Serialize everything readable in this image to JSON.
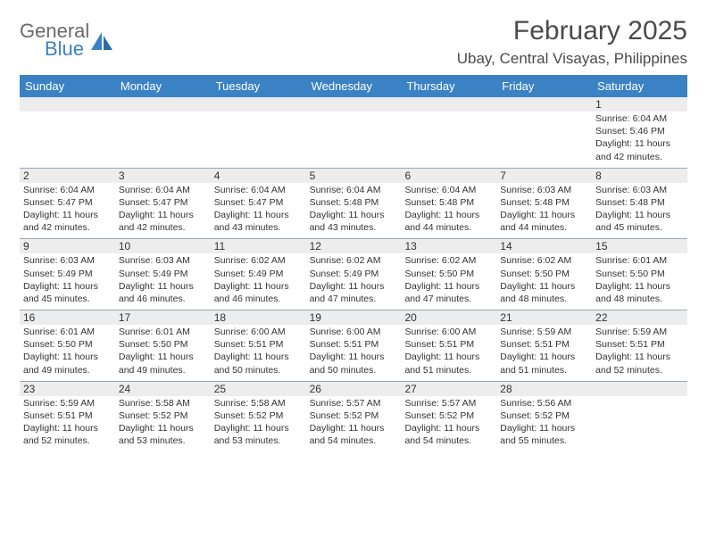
{
  "logo": {
    "text_top": "General",
    "text_bottom": "Blue",
    "top_color": "#6a6a6a",
    "bottom_color": "#3b82c4"
  },
  "title": "February 2025",
  "location": "Ubay, Central Visayas, Philippines",
  "header_bg": "#3b82c4",
  "header_text_color": "#ffffff",
  "stripe_bg": "#ededed",
  "divider_color": "#9aa7b5",
  "weekdays": [
    "Sunday",
    "Monday",
    "Tuesday",
    "Wednesday",
    "Thursday",
    "Friday",
    "Saturday"
  ],
  "weeks": [
    [
      {
        "n": "",
        "sr": "",
        "ss": "",
        "dl": ""
      },
      {
        "n": "",
        "sr": "",
        "ss": "",
        "dl": ""
      },
      {
        "n": "",
        "sr": "",
        "ss": "",
        "dl": ""
      },
      {
        "n": "",
        "sr": "",
        "ss": "",
        "dl": ""
      },
      {
        "n": "",
        "sr": "",
        "ss": "",
        "dl": ""
      },
      {
        "n": "",
        "sr": "",
        "ss": "",
        "dl": ""
      },
      {
        "n": "1",
        "sr": "Sunrise: 6:04 AM",
        "ss": "Sunset: 5:46 PM",
        "dl": "Daylight: 11 hours and 42 minutes."
      }
    ],
    [
      {
        "n": "2",
        "sr": "Sunrise: 6:04 AM",
        "ss": "Sunset: 5:47 PM",
        "dl": "Daylight: 11 hours and 42 minutes."
      },
      {
        "n": "3",
        "sr": "Sunrise: 6:04 AM",
        "ss": "Sunset: 5:47 PM",
        "dl": "Daylight: 11 hours and 42 minutes."
      },
      {
        "n": "4",
        "sr": "Sunrise: 6:04 AM",
        "ss": "Sunset: 5:47 PM",
        "dl": "Daylight: 11 hours and 43 minutes."
      },
      {
        "n": "5",
        "sr": "Sunrise: 6:04 AM",
        "ss": "Sunset: 5:48 PM",
        "dl": "Daylight: 11 hours and 43 minutes."
      },
      {
        "n": "6",
        "sr": "Sunrise: 6:04 AM",
        "ss": "Sunset: 5:48 PM",
        "dl": "Daylight: 11 hours and 44 minutes."
      },
      {
        "n": "7",
        "sr": "Sunrise: 6:03 AM",
        "ss": "Sunset: 5:48 PM",
        "dl": "Daylight: 11 hours and 44 minutes."
      },
      {
        "n": "8",
        "sr": "Sunrise: 6:03 AM",
        "ss": "Sunset: 5:48 PM",
        "dl": "Daylight: 11 hours and 45 minutes."
      }
    ],
    [
      {
        "n": "9",
        "sr": "Sunrise: 6:03 AM",
        "ss": "Sunset: 5:49 PM",
        "dl": "Daylight: 11 hours and 45 minutes."
      },
      {
        "n": "10",
        "sr": "Sunrise: 6:03 AM",
        "ss": "Sunset: 5:49 PM",
        "dl": "Daylight: 11 hours and 46 minutes."
      },
      {
        "n": "11",
        "sr": "Sunrise: 6:02 AM",
        "ss": "Sunset: 5:49 PM",
        "dl": "Daylight: 11 hours and 46 minutes."
      },
      {
        "n": "12",
        "sr": "Sunrise: 6:02 AM",
        "ss": "Sunset: 5:49 PM",
        "dl": "Daylight: 11 hours and 47 minutes."
      },
      {
        "n": "13",
        "sr": "Sunrise: 6:02 AM",
        "ss": "Sunset: 5:50 PM",
        "dl": "Daylight: 11 hours and 47 minutes."
      },
      {
        "n": "14",
        "sr": "Sunrise: 6:02 AM",
        "ss": "Sunset: 5:50 PM",
        "dl": "Daylight: 11 hours and 48 minutes."
      },
      {
        "n": "15",
        "sr": "Sunrise: 6:01 AM",
        "ss": "Sunset: 5:50 PM",
        "dl": "Daylight: 11 hours and 48 minutes."
      }
    ],
    [
      {
        "n": "16",
        "sr": "Sunrise: 6:01 AM",
        "ss": "Sunset: 5:50 PM",
        "dl": "Daylight: 11 hours and 49 minutes."
      },
      {
        "n": "17",
        "sr": "Sunrise: 6:01 AM",
        "ss": "Sunset: 5:50 PM",
        "dl": "Daylight: 11 hours and 49 minutes."
      },
      {
        "n": "18",
        "sr": "Sunrise: 6:00 AM",
        "ss": "Sunset: 5:51 PM",
        "dl": "Daylight: 11 hours and 50 minutes."
      },
      {
        "n": "19",
        "sr": "Sunrise: 6:00 AM",
        "ss": "Sunset: 5:51 PM",
        "dl": "Daylight: 11 hours and 50 minutes."
      },
      {
        "n": "20",
        "sr": "Sunrise: 6:00 AM",
        "ss": "Sunset: 5:51 PM",
        "dl": "Daylight: 11 hours and 51 minutes."
      },
      {
        "n": "21",
        "sr": "Sunrise: 5:59 AM",
        "ss": "Sunset: 5:51 PM",
        "dl": "Daylight: 11 hours and 51 minutes."
      },
      {
        "n": "22",
        "sr": "Sunrise: 5:59 AM",
        "ss": "Sunset: 5:51 PM",
        "dl": "Daylight: 11 hours and 52 minutes."
      }
    ],
    [
      {
        "n": "23",
        "sr": "Sunrise: 5:59 AM",
        "ss": "Sunset: 5:51 PM",
        "dl": "Daylight: 11 hours and 52 minutes."
      },
      {
        "n": "24",
        "sr": "Sunrise: 5:58 AM",
        "ss": "Sunset: 5:52 PM",
        "dl": "Daylight: 11 hours and 53 minutes."
      },
      {
        "n": "25",
        "sr": "Sunrise: 5:58 AM",
        "ss": "Sunset: 5:52 PM",
        "dl": "Daylight: 11 hours and 53 minutes."
      },
      {
        "n": "26",
        "sr": "Sunrise: 5:57 AM",
        "ss": "Sunset: 5:52 PM",
        "dl": "Daylight: 11 hours and 54 minutes."
      },
      {
        "n": "27",
        "sr": "Sunrise: 5:57 AM",
        "ss": "Sunset: 5:52 PM",
        "dl": "Daylight: 11 hours and 54 minutes."
      },
      {
        "n": "28",
        "sr": "Sunrise: 5:56 AM",
        "ss": "Sunset: 5:52 PM",
        "dl": "Daylight: 11 hours and 55 minutes."
      },
      {
        "n": "",
        "sr": "",
        "ss": "",
        "dl": ""
      }
    ]
  ]
}
